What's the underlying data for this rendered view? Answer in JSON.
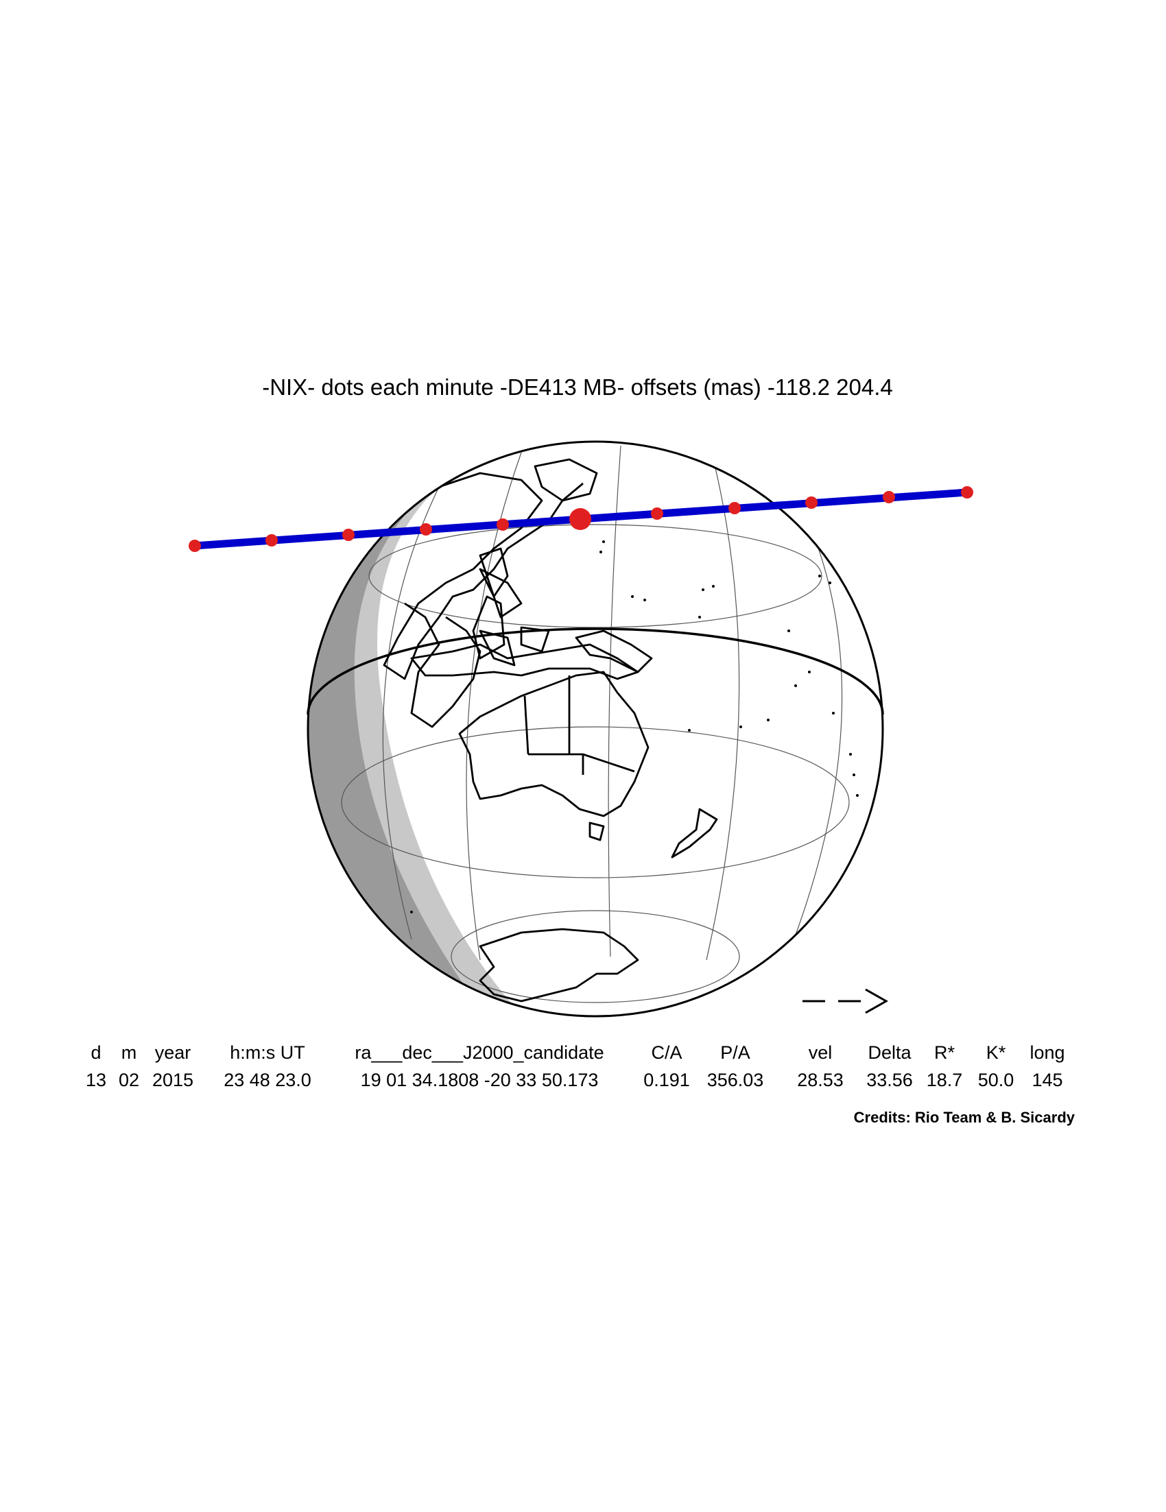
{
  "title": "-NIX- dots each minute -DE413 MB- offsets (mas) -118.2  204.4",
  "table": {
    "columns": [
      {
        "header": "d",
        "value": "13"
      },
      {
        "header": "m",
        "value": "02"
      },
      {
        "header": "year",
        "value": "2015"
      },
      {
        "header": "h:m:s UT",
        "value": "23 48 23.0"
      },
      {
        "header": "ra___dec___J2000_candidate",
        "value": "19 01 34.1808 -20 33 50.173"
      },
      {
        "header": "C/A",
        "value": "0.191"
      },
      {
        "header": "P/A",
        "value": "356.03"
      },
      {
        "header": "vel",
        "value": "28.53"
      },
      {
        "header": "Delta",
        "value": "33.56"
      },
      {
        "header": "R*",
        "value": "18.7"
      },
      {
        "header": "K*",
        "value": "50.0"
      },
      {
        "header": "long",
        "value": "145"
      }
    ]
  },
  "credits": "Credits: Rio Team & B. Sicardy"
}
